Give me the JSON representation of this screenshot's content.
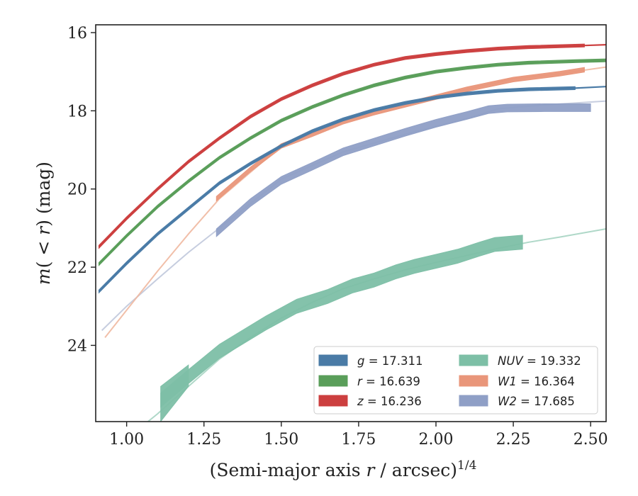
{
  "chart_data": {
    "type": "line",
    "xlabel_main": "(Semi-major axis ",
    "xlabel_var": "r",
    "xlabel_unit": " / arcsec)",
    "xlabel_exp": "1/4",
    "ylabel_var_m": "m",
    "ylabel_paren_open": "(",
    "ylabel_lt": " < ",
    "ylabel_var_r": "r",
    "ylabel_paren_close": ")",
    "ylabel_unit": " (mag)",
    "xlim": [
      0.9,
      2.55
    ],
    "ylim": [
      25.95,
      15.8
    ],
    "y_inverted": true,
    "xticks": [
      1.0,
      1.25,
      1.5,
      1.75,
      2.0,
      2.25,
      2.5
    ],
    "xtick_labels": [
      "1.00",
      "1.25",
      "1.50",
      "1.75",
      "2.00",
      "2.25",
      "2.50"
    ],
    "yticks": [
      16,
      18,
      20,
      22,
      24
    ],
    "ytick_labels": [
      "16",
      "18",
      "20",
      "22",
      "24"
    ],
    "legend_position": "lower-right",
    "series": [
      {
        "key": "g",
        "label_var": "g",
        "label_value": " = 17.311",
        "color": "#4a7ba6",
        "band_color": "#4a7ba6",
        "model": [
          [
            0.91,
            22.62
          ],
          [
            1.0,
            21.9
          ],
          [
            1.1,
            21.15
          ],
          [
            1.2,
            20.5
          ],
          [
            1.3,
            19.85
          ],
          [
            1.4,
            19.35
          ],
          [
            1.5,
            18.9
          ],
          [
            1.6,
            18.52
          ],
          [
            1.7,
            18.22
          ],
          [
            1.8,
            17.98
          ],
          [
            1.9,
            17.8
          ],
          [
            2.0,
            17.66
          ],
          [
            2.1,
            17.56
          ],
          [
            2.2,
            17.49
          ],
          [
            2.3,
            17.45
          ],
          [
            2.45,
            17.42
          ],
          [
            2.55,
            17.38
          ]
        ],
        "band_x": [
          0.91,
          1.0,
          1.1,
          1.2,
          1.3,
          1.4,
          1.5,
          1.6,
          1.7,
          1.8,
          1.9,
          2.0,
          2.1,
          2.2,
          2.3,
          2.45
        ],
        "band_y": [
          22.62,
          21.9,
          21.15,
          20.5,
          19.85,
          19.35,
          18.9,
          18.52,
          18.22,
          17.98,
          17.8,
          17.66,
          17.56,
          17.49,
          17.45,
          17.42
        ],
        "band_half": 0.04
      },
      {
        "key": "r",
        "label_var": "r",
        "label_value": " = 16.639",
        "color": "#5a9e5a",
        "band_color": "#5a9e5a",
        "model": [
          [
            0.91,
            21.92
          ],
          [
            1.0,
            21.2
          ],
          [
            1.1,
            20.45
          ],
          [
            1.2,
            19.8
          ],
          [
            1.3,
            19.2
          ],
          [
            1.4,
            18.7
          ],
          [
            1.5,
            18.25
          ],
          [
            1.6,
            17.9
          ],
          [
            1.7,
            17.6
          ],
          [
            1.8,
            17.35
          ],
          [
            1.9,
            17.15
          ],
          [
            2.0,
            17.0
          ],
          [
            2.1,
            16.9
          ],
          [
            2.2,
            16.82
          ],
          [
            2.3,
            16.77
          ],
          [
            2.45,
            16.73
          ],
          [
            2.55,
            16.71
          ]
        ],
        "band_x": [
          0.91,
          1.0,
          1.1,
          1.2,
          1.3,
          1.4,
          1.5,
          1.6,
          1.7,
          1.8,
          1.9,
          2.0,
          2.1,
          2.2,
          2.3,
          2.45,
          2.55
        ],
        "band_y": [
          21.92,
          21.2,
          20.45,
          19.8,
          19.2,
          18.7,
          18.25,
          17.9,
          17.6,
          17.35,
          17.15,
          17.0,
          16.9,
          16.82,
          16.77,
          16.73,
          16.71
        ],
        "band_half": 0.04
      },
      {
        "key": "z",
        "label_var": "z",
        "label_value": " = 16.236",
        "color": "#cc3f3f",
        "band_color": "#cc3f3f",
        "model": [
          [
            0.91,
            21.48
          ],
          [
            1.0,
            20.75
          ],
          [
            1.1,
            20.0
          ],
          [
            1.2,
            19.3
          ],
          [
            1.3,
            18.7
          ],
          [
            1.4,
            18.15
          ],
          [
            1.5,
            17.7
          ],
          [
            1.6,
            17.35
          ],
          [
            1.7,
            17.05
          ],
          [
            1.8,
            16.82
          ],
          [
            1.9,
            16.65
          ],
          [
            2.0,
            16.55
          ],
          [
            2.1,
            16.47
          ],
          [
            2.2,
            16.41
          ],
          [
            2.3,
            16.37
          ],
          [
            2.48,
            16.33
          ],
          [
            2.55,
            16.31
          ]
        ],
        "band_x": [
          0.91,
          1.0,
          1.1,
          1.2,
          1.3,
          1.4,
          1.5,
          1.6,
          1.7,
          1.8,
          1.9,
          2.0,
          2.1,
          2.2,
          2.3,
          2.48
        ],
        "band_y": [
          21.48,
          20.75,
          20.0,
          19.3,
          18.7,
          18.15,
          17.7,
          17.35,
          17.05,
          16.82,
          16.65,
          16.55,
          16.47,
          16.41,
          16.37,
          16.33
        ],
        "band_half": 0.04
      },
      {
        "key": "NUV",
        "label_var": "NUV",
        "label_value": " = 19.332",
        "color": "#a6d4c2",
        "band_color": "#7dbfa6",
        "model": [
          [
            1.03,
            26.2
          ],
          [
            1.1,
            25.75
          ],
          [
            1.2,
            25.05
          ],
          [
            1.3,
            24.35
          ],
          [
            1.4,
            23.8
          ],
          [
            1.5,
            23.3
          ],
          [
            1.6,
            22.9
          ],
          [
            1.7,
            22.55
          ],
          [
            1.8,
            22.3
          ],
          [
            1.9,
            22.07
          ],
          [
            2.0,
            21.88
          ],
          [
            2.1,
            21.7
          ],
          [
            2.2,
            21.52
          ],
          [
            2.3,
            21.36
          ],
          [
            2.4,
            21.23
          ],
          [
            2.55,
            21.02
          ]
        ],
        "band_x": [
          1.11,
          1.2,
          1.3,
          1.45,
          1.55,
          1.65,
          1.73,
          1.8,
          1.87,
          1.93,
          2.0,
          2.07,
          2.14,
          2.19,
          2.28
        ],
        "band_y": [
          25.4,
          24.8,
          24.15,
          23.43,
          23.0,
          22.75,
          22.48,
          22.33,
          22.12,
          21.98,
          21.85,
          21.72,
          21.54,
          21.42,
          21.36
        ],
        "band_half": 0.18
      },
      {
        "key": "W1",
        "label_var": "W1",
        "label_value": " = 16.364",
        "color": "#f0b8a0",
        "band_color": "#e9967a",
        "model": [
          [
            0.93,
            23.8
          ],
          [
            1.0,
            23.1
          ],
          [
            1.1,
            22.1
          ],
          [
            1.2,
            21.15
          ],
          [
            1.3,
            20.25
          ],
          [
            1.5,
            18.9
          ],
          [
            1.7,
            18.25
          ],
          [
            1.9,
            17.8
          ],
          [
            2.1,
            17.45
          ],
          [
            2.25,
            17.18
          ],
          [
            2.4,
            17.05
          ],
          [
            2.55,
            16.88
          ]
        ],
        "band_x": [
          1.29,
          1.4,
          1.5,
          1.6,
          1.7,
          1.8,
          1.9,
          2.0,
          2.1,
          2.25,
          2.4,
          2.48
        ],
        "band_y": [
          20.25,
          19.5,
          18.9,
          18.6,
          18.28,
          18.05,
          17.85,
          17.65,
          17.45,
          17.2,
          17.05,
          16.95
        ],
        "band_half": 0.06
      },
      {
        "key": "W2",
        "label_var": "W2",
        "label_value": " = 17.685",
        "color": "#c0c8dc",
        "band_color": "#8f9fc6",
        "model": [
          [
            0.92,
            23.62
          ],
          [
            1.0,
            23.0
          ],
          [
            1.1,
            22.3
          ],
          [
            1.2,
            21.62
          ],
          [
            1.3,
            21.0
          ],
          [
            1.5,
            19.75
          ],
          [
            1.7,
            19.05
          ],
          [
            1.9,
            18.6
          ],
          [
            2.1,
            18.2
          ],
          [
            2.2,
            17.95
          ],
          [
            2.35,
            17.85
          ],
          [
            2.55,
            17.75
          ]
        ],
        "band_x": [
          1.29,
          1.4,
          1.5,
          1.6,
          1.7,
          1.8,
          1.9,
          2.0,
          2.1,
          2.17,
          2.23,
          2.35,
          2.5
        ],
        "band_y": [
          21.12,
          20.35,
          19.78,
          19.42,
          19.05,
          18.8,
          18.55,
          18.32,
          18.12,
          17.97,
          17.93,
          17.92,
          17.92
        ],
        "band_half": 0.1
      }
    ]
  }
}
